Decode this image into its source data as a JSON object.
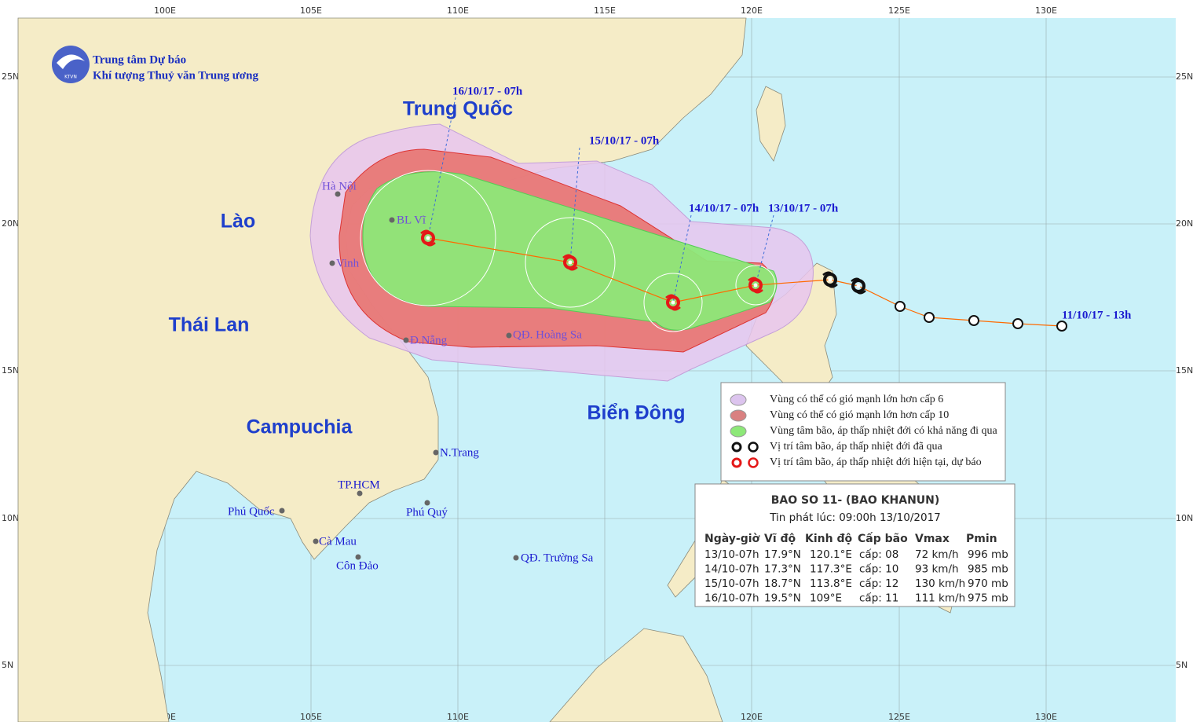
{
  "header": {
    "agency_line1": "Trung tâm Dự báo",
    "agency_line2": "Khí tượng Thuỷ văn Trung ương",
    "logo_text": "KTVN"
  },
  "map": {
    "lon_labels": [
      "100E",
      "105E",
      "110E",
      "115E",
      "120E",
      "125E",
      "130E"
    ],
    "lat_labels": [
      "25N",
      "20N",
      "15N",
      "10N",
      "5N"
    ],
    "regions": [
      "Trung Quốc",
      "Lào",
      "Thái Lan",
      "Campuchia",
      "Biển Đông"
    ],
    "places": [
      "Hà Nội",
      "BL Vĩ",
      "Vinh",
      "Đ.Nẵng",
      "QĐ. Hoàng Sa",
      "N.Trang",
      "TP.HCM",
      "Phú Quốc",
      "Phú Quý",
      "Cà Mau",
      "Côn Đảo",
      "QĐ. Trường Sa"
    ],
    "track_labels": [
      "16/10/17 - 07h",
      "15/10/17 - 07h",
      "14/10/17 - 07h",
      "13/10/17 - 07h",
      "11/10/17 - 13h"
    ]
  },
  "legend": {
    "items": [
      "Vùng có thể có gió mạnh lớn hơn cấp 6",
      "Vùng có thể có gió mạnh lớn hơn cấp 10",
      "Vùng tâm bão, áp thấp nhiệt đới có khả năng đi qua",
      "Vị trí tâm bão, áp thấp nhiệt đới đã qua",
      "Vị trí tâm bão, áp thấp nhiệt đới hiện tại, dự báo"
    ]
  },
  "bulletin": {
    "title": "BAO SO 11- (BAO KHANUN)",
    "issued": "Tin phát lúc: 09:00h 13/10/2017",
    "columns": [
      "Ngày-giờ",
      "Vĩ độ",
      "Kinh độ",
      "Cấp bão",
      "Vmax",
      "Pmin"
    ],
    "rows": [
      [
        "13/10-07h",
        "17.9°N",
        "120.1°E",
        "cấp: 08",
        "72 km/h",
        "996 mb"
      ],
      [
        "14/10-07h",
        "17.3°N",
        "117.3°E",
        "cấp: 10",
        "93 km/h",
        "985 mb"
      ],
      [
        "15/10-07h",
        "18.7°N",
        "113.8°E",
        "cấp: 12",
        "130 km/h",
        "970 mb"
      ],
      [
        "16/10-07h",
        "19.5°N",
        "109°E",
        "cấp: 11",
        "111 km/h",
        "975 mb"
      ]
    ]
  }
}
